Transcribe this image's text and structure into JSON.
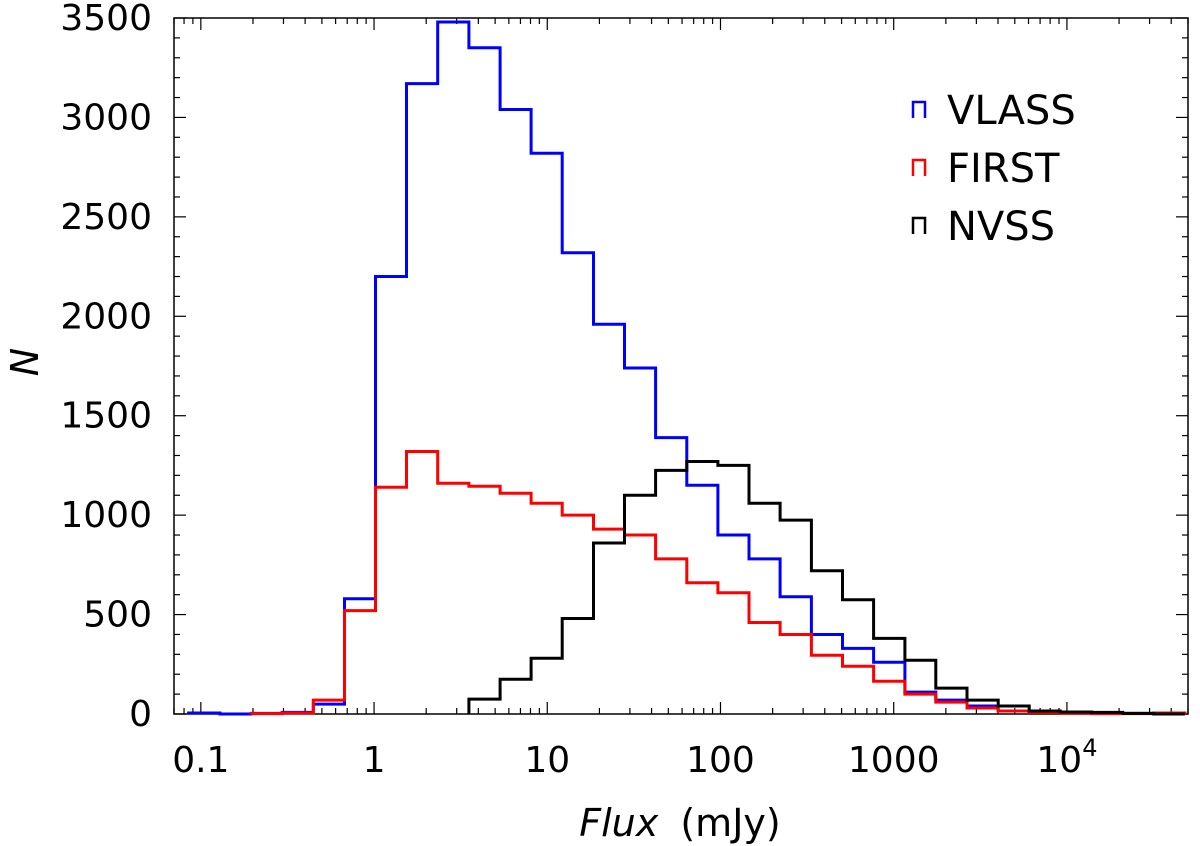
{
  "chart_data": {
    "type": "histogram",
    "x_scale": "log",
    "xlabel": "Flux",
    "xlabel_unit": "(mJy)",
    "ylabel": "N",
    "xlim": [
      0.07,
      50000
    ],
    "ylim": [
      0,
      3500
    ],
    "x_ticks": [
      {
        "value": 0.1,
        "label": "0.1"
      },
      {
        "value": 1,
        "label": "1"
      },
      {
        "value": 10,
        "label": "10"
      },
      {
        "value": 100,
        "label": "100"
      },
      {
        "value": 1000,
        "label": "1000"
      },
      {
        "value": 10000,
        "label": "10",
        "exponent": "4"
      }
    ],
    "y_ticks": [
      {
        "value": 0,
        "label": "0"
      },
      {
        "value": 500,
        "label": "500"
      },
      {
        "value": 1000,
        "label": "1000"
      },
      {
        "value": 1500,
        "label": "1500"
      },
      {
        "value": 2000,
        "label": "2000"
      },
      {
        "value": 2500,
        "label": "2500"
      },
      {
        "value": 3000,
        "label": "3000"
      },
      {
        "value": 3500,
        "label": "3500"
      }
    ],
    "grid": false,
    "legend_position": "top-right",
    "bin_edges": [
      0.085,
      0.129,
      0.195,
      0.295,
      0.446,
      0.675,
      1.02,
      1.54,
      2.33,
      3.53,
      5.34,
      8.07,
      12.2,
      18.5,
      27.9,
      42.2,
      63.9,
      96.6,
      146,
      221,
      335,
      506,
      765,
      1160,
      1750,
      2650,
      4010,
      6060,
      9160,
      13900,
      21000,
      31700,
      48000
    ],
    "series": [
      {
        "name": "VLASS",
        "color": "#0000ff",
        "values": [
          5,
          0,
          3,
          8,
          50,
          580,
          2200,
          3170,
          3480,
          3350,
          3040,
          2820,
          2320,
          1960,
          1740,
          1390,
          1150,
          900,
          780,
          590,
          400,
          330,
          260,
          110,
          70,
          40,
          15,
          10,
          8,
          5,
          3,
          5
        ]
      },
      {
        "name": "FIRST",
        "color": "#ff0000",
        "values": [
          0,
          0,
          2,
          5,
          70,
          520,
          1140,
          1320,
          1160,
          1145,
          1110,
          1060,
          1000,
          930,
          900,
          780,
          660,
          610,
          460,
          400,
          295,
          240,
          165,
          100,
          60,
          30,
          15,
          8,
          4,
          2,
          2,
          5
        ]
      },
      {
        "name": "NVSS",
        "color": "#000000",
        "values": [
          0,
          0,
          0,
          0,
          0,
          0,
          0,
          0,
          0,
          75,
          175,
          280,
          480,
          860,
          1100,
          1225,
          1270,
          1250,
          1060,
          975,
          720,
          575,
          380,
          270,
          130,
          70,
          40,
          15,
          10,
          8,
          3,
          0
        ]
      }
    ]
  }
}
